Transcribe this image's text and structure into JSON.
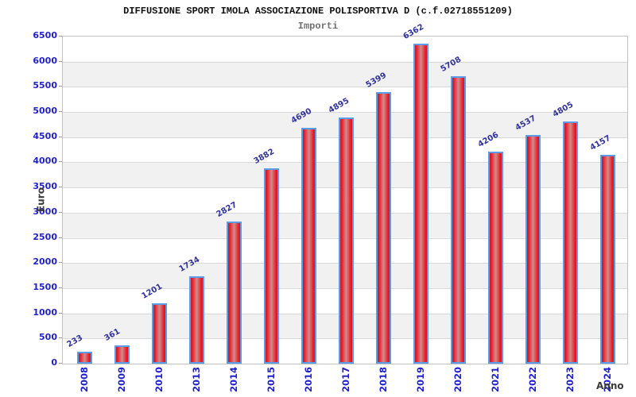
{
  "chart_data": {
    "type": "bar",
    "title": "DIFFUSIONE SPORT IMOLA ASSOCIAZIONE POLISPORTIVA D (c.f.02718551209)",
    "subtitle": "Importi",
    "xlabel": "Anno",
    "ylabel": "Euro",
    "categories": [
      "2008",
      "2009",
      "2010",
      "2013",
      "2014",
      "2015",
      "2016",
      "2017",
      "2018",
      "2019",
      "2020",
      "2021",
      "2022",
      "2023",
      "2024"
    ],
    "values": [
      233,
      361,
      1201,
      1734,
      2827,
      3882,
      4690,
      4895,
      5399,
      6362,
      5708,
      4206,
      4537,
      4805,
      4157
    ],
    "ylim": [
      0,
      6500
    ],
    "ytick_step": 500,
    "yticks": [
      0,
      500,
      1000,
      1500,
      2000,
      2500,
      3000,
      3500,
      4000,
      4500,
      5000,
      5500,
      6000,
      6500
    ],
    "legend": "none",
    "grid": "alternating white/gray horizontal bands every 500 with light gridlines",
    "value_labels": "above each bar, rotated -30deg",
    "colors": {
      "bar_fill_edge": "#c81622",
      "bar_fill_bright": "#ea2430",
      "bar_fill_center": "#d08d8d",
      "bar_border": "#5b9ce8",
      "tick_label": "#1f1fcc",
      "value_label": "#32329b",
      "band_white": "#ffffff",
      "band_gray": "#f1f1f1",
      "gridline": "#d8d8d8",
      "plot_border": "#c0c0c0",
      "title": "#111111",
      "subtitle": "#707070",
      "axis_title": "#3a3a3a"
    }
  }
}
